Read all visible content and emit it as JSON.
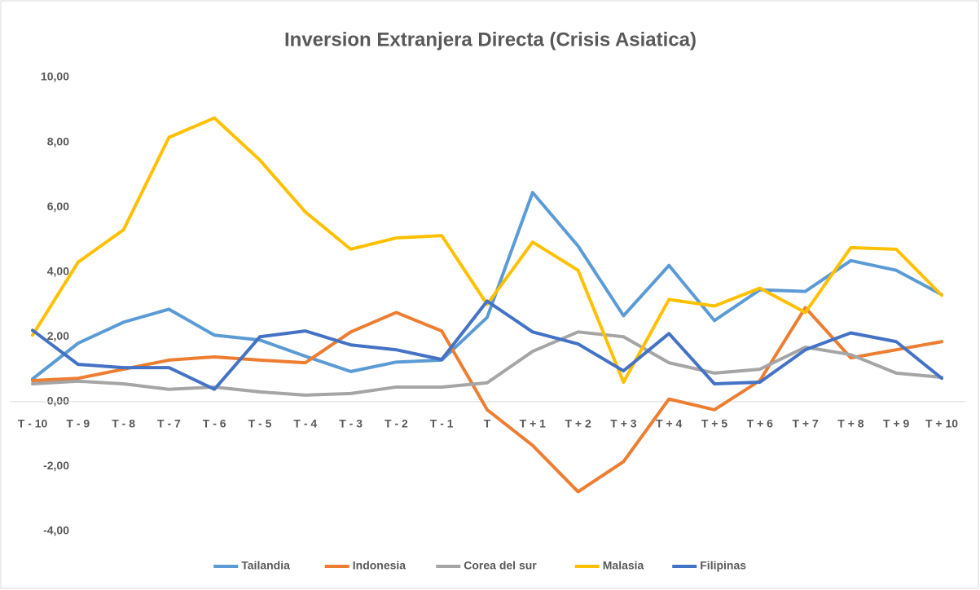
{
  "chart_data": {
    "type": "line",
    "title": "Inversion Extranjera Directa (Crisis Asiatica)",
    "categories": [
      "T - 10",
      "T - 9",
      "T - 8",
      "T - 7",
      "T - 6",
      "T - 5",
      "T - 4",
      "T - 3",
      "T - 2",
      "T - 1",
      "T",
      "T + 1",
      "T + 2",
      "T + 3",
      "T + 4",
      "T + 5",
      "T + 6",
      "T + 7",
      "T + 8",
      "T + 9",
      "T + 10"
    ],
    "series": [
      {
        "name": "Tailandia",
        "color": "#5b9bd5",
        "values": [
          0.7,
          1.8,
          2.45,
          2.85,
          2.05,
          1.9,
          1.4,
          0.93,
          1.22,
          1.28,
          2.6,
          6.45,
          4.8,
          2.65,
          4.2,
          2.5,
          3.45,
          3.4,
          4.35,
          4.05,
          3.3
        ]
      },
      {
        "name": "Indonesia",
        "color": "#ed7d31",
        "values": [
          0.65,
          0.72,
          1.0,
          1.28,
          1.38,
          1.28,
          1.2,
          2.15,
          2.75,
          2.18,
          -0.25,
          -1.35,
          -2.78,
          -1.85,
          0.08,
          -0.25,
          0.65,
          2.9,
          1.35,
          1.6,
          1.85
        ]
      },
      {
        "name": "Corea del sur",
        "color": "#a5a5a5",
        "values": [
          0.55,
          0.63,
          0.55,
          0.38,
          0.45,
          0.3,
          0.2,
          0.25,
          0.45,
          0.45,
          0.58,
          1.55,
          2.15,
          2.0,
          1.2,
          0.88,
          1.0,
          1.68,
          1.45,
          0.88,
          0.75
        ]
      },
      {
        "name": "Malasia",
        "color": "#ffc000",
        "values": [
          2.05,
          4.3,
          5.3,
          8.15,
          8.75,
          7.45,
          5.85,
          4.7,
          5.05,
          5.12,
          3.0,
          4.92,
          4.05,
          0.6,
          3.15,
          2.95,
          3.5,
          2.75,
          4.75,
          4.7,
          3.28
        ]
      },
      {
        "name": "Filipinas",
        "color": "#4472c4",
        "values": [
          2.2,
          1.15,
          1.05,
          1.05,
          0.38,
          2.0,
          2.18,
          1.75,
          1.6,
          1.3,
          3.1,
          2.15,
          1.78,
          0.95,
          2.1,
          0.55,
          0.6,
          1.6,
          2.12,
          1.85,
          0.72
        ]
      }
    ],
    "ylim": [
      -4,
      10
    ],
    "yticks": [
      {
        "value": -4,
        "label": "-4,00"
      },
      {
        "value": -2,
        "label": "-2,00"
      },
      {
        "value": 0,
        "label": "0,00"
      },
      {
        "value": 2,
        "label": "2,00"
      },
      {
        "value": 4,
        "label": "4,00"
      },
      {
        "value": 6,
        "label": "6,00"
      },
      {
        "value": 8,
        "label": "8,00"
      },
      {
        "value": 10,
        "label": "10,00"
      }
    ],
    "grid": false,
    "legend": "bottom"
  }
}
